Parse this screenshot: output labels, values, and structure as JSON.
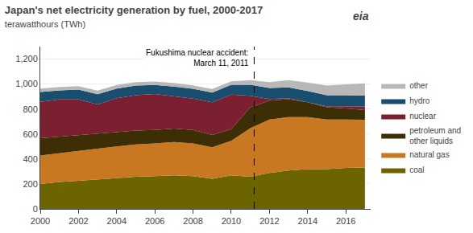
{
  "chart_data": {
    "type": "area",
    "stacked": true,
    "title": "Japan's net electricity generation by fuel, 2000-2017",
    "subtitle": "terawatthours (TWh)",
    "x": [
      2000,
      2001,
      2002,
      2003,
      2004,
      2005,
      2006,
      2007,
      2008,
      2009,
      2010,
      2011,
      2012,
      2013,
      2014,
      2015,
      2016,
      2017
    ],
    "series": [
      {
        "name": "coal",
        "color": "#6b6400",
        "values": [
          200,
          215,
          225,
          235,
          248,
          258,
          262,
          268,
          262,
          242,
          268,
          258,
          288,
          308,
          318,
          318,
          328,
          332
        ]
      },
      {
        "name": "natural gas",
        "color": "#c87820",
        "values": [
          228,
          232,
          242,
          248,
          252,
          258,
          262,
          268,
          262,
          252,
          278,
          388,
          428,
          428,
          418,
          398,
          388,
          382
        ]
      },
      {
        "name": "petroleum and\nother liquids",
        "color": "#3d2e06",
        "values": [
          138,
          132,
          122,
          122,
          118,
          112,
          108,
          108,
          108,
          98,
          92,
          168,
          152,
          142,
          118,
          98,
          88,
          78
        ]
      },
      {
        "name": "nuclear",
        "color": "#7a2030",
        "values": [
          292,
          298,
          288,
          232,
          268,
          282,
          288,
          258,
          252,
          262,
          278,
          92,
          12,
          8,
          2,
          8,
          18,
          28
        ]
      },
      {
        "name": "hydro",
        "color": "#1a4e6e",
        "values": [
          78,
          72,
          78,
          82,
          78,
          78,
          72,
          78,
          78,
          78,
          78,
          88,
          88,
          88,
          88,
          88,
          88,
          88
        ]
      },
      {
        "name": "other",
        "color": "#b8b8b8",
        "values": [
          28,
          28,
          28,
          28,
          28,
          28,
          28,
          28,
          28,
          28,
          28,
          38,
          48,
          58,
          68,
          78,
          88,
          98
        ]
      }
    ],
    "xlim": [
      2000,
      2017.3
    ],
    "xticks": [
      2000,
      2002,
      2004,
      2006,
      2008,
      2010,
      2012,
      2014,
      2016
    ],
    "ylim": [
      0,
      1300
    ],
    "yticks": [
      0,
      200,
      400,
      600,
      800,
      {
        "value": 1000,
        "label": "1,000"
      },
      {
        "value": 1200,
        "label": "1,200"
      }
    ],
    "grid": true,
    "legend": "right",
    "annotations": [
      {
        "text": "Fukushima nuclear accident:\nMarch 11, 2011",
        "x": 2011.2
      },
      {
        "text": "eia"
      }
    ]
  }
}
